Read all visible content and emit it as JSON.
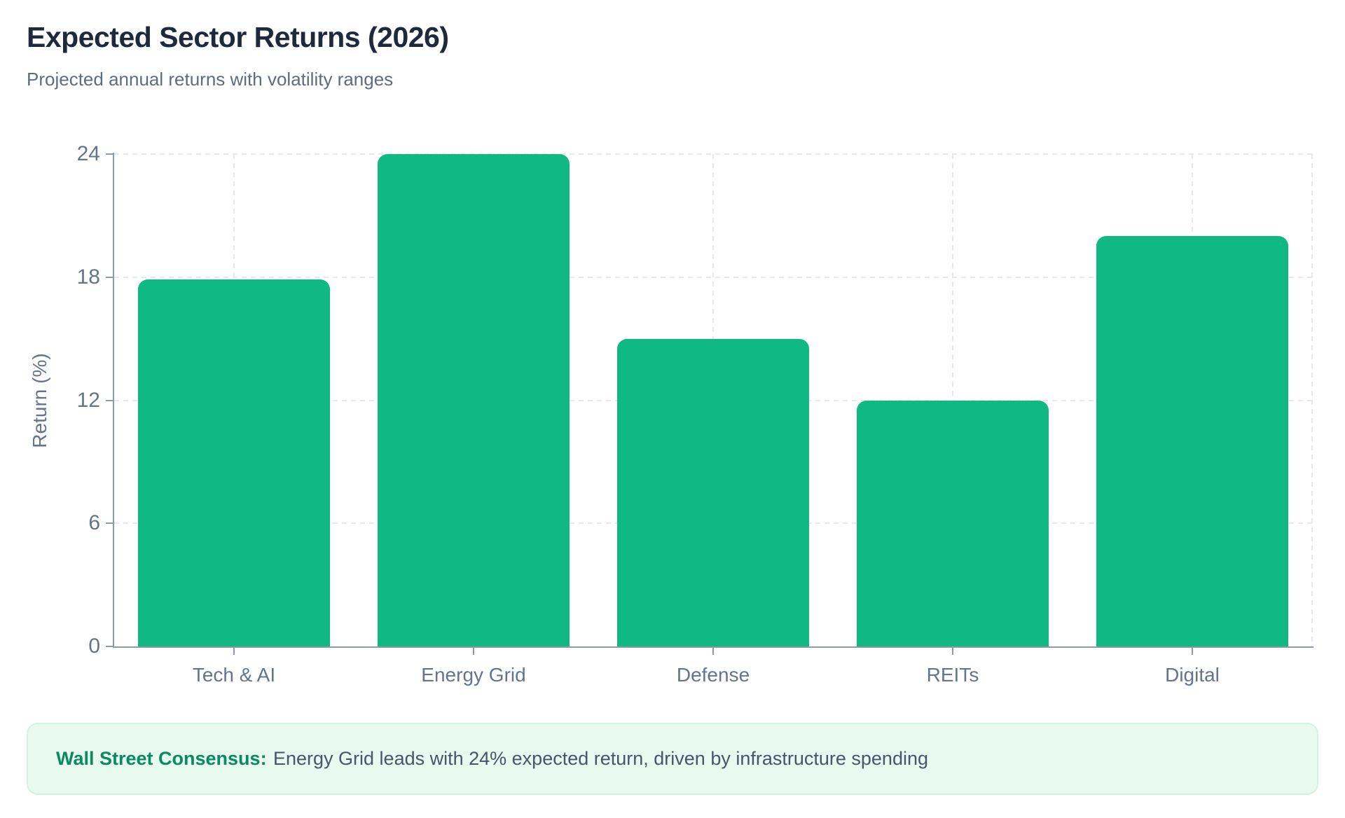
{
  "header": {
    "title": "Expected Sector Returns (2026)",
    "subtitle": "Projected annual returns with volatility ranges"
  },
  "chart_data": {
    "type": "bar",
    "title": "Expected Sector Returns (2026)",
    "subtitle": "Projected annual returns with volatility ranges",
    "categories": [
      "Tech & AI",
      "Energy Grid",
      "Defense",
      "REITs",
      "Digital"
    ],
    "values": [
      17.9,
      24,
      15,
      12,
      20
    ],
    "xlabel": "",
    "ylabel": "Return (%)",
    "ylim": [
      0,
      24
    ],
    "yticks": [
      0,
      6,
      12,
      18,
      24
    ],
    "grid": true,
    "legend": "none",
    "bar_color": "#10b981"
  },
  "note": {
    "label": "Wall Street Consensus:",
    "text": "Energy Grid leads with 24% expected return, driven by infrastructure spending",
    "background": "#e8f9f0",
    "label_color": "#0a8a62"
  }
}
